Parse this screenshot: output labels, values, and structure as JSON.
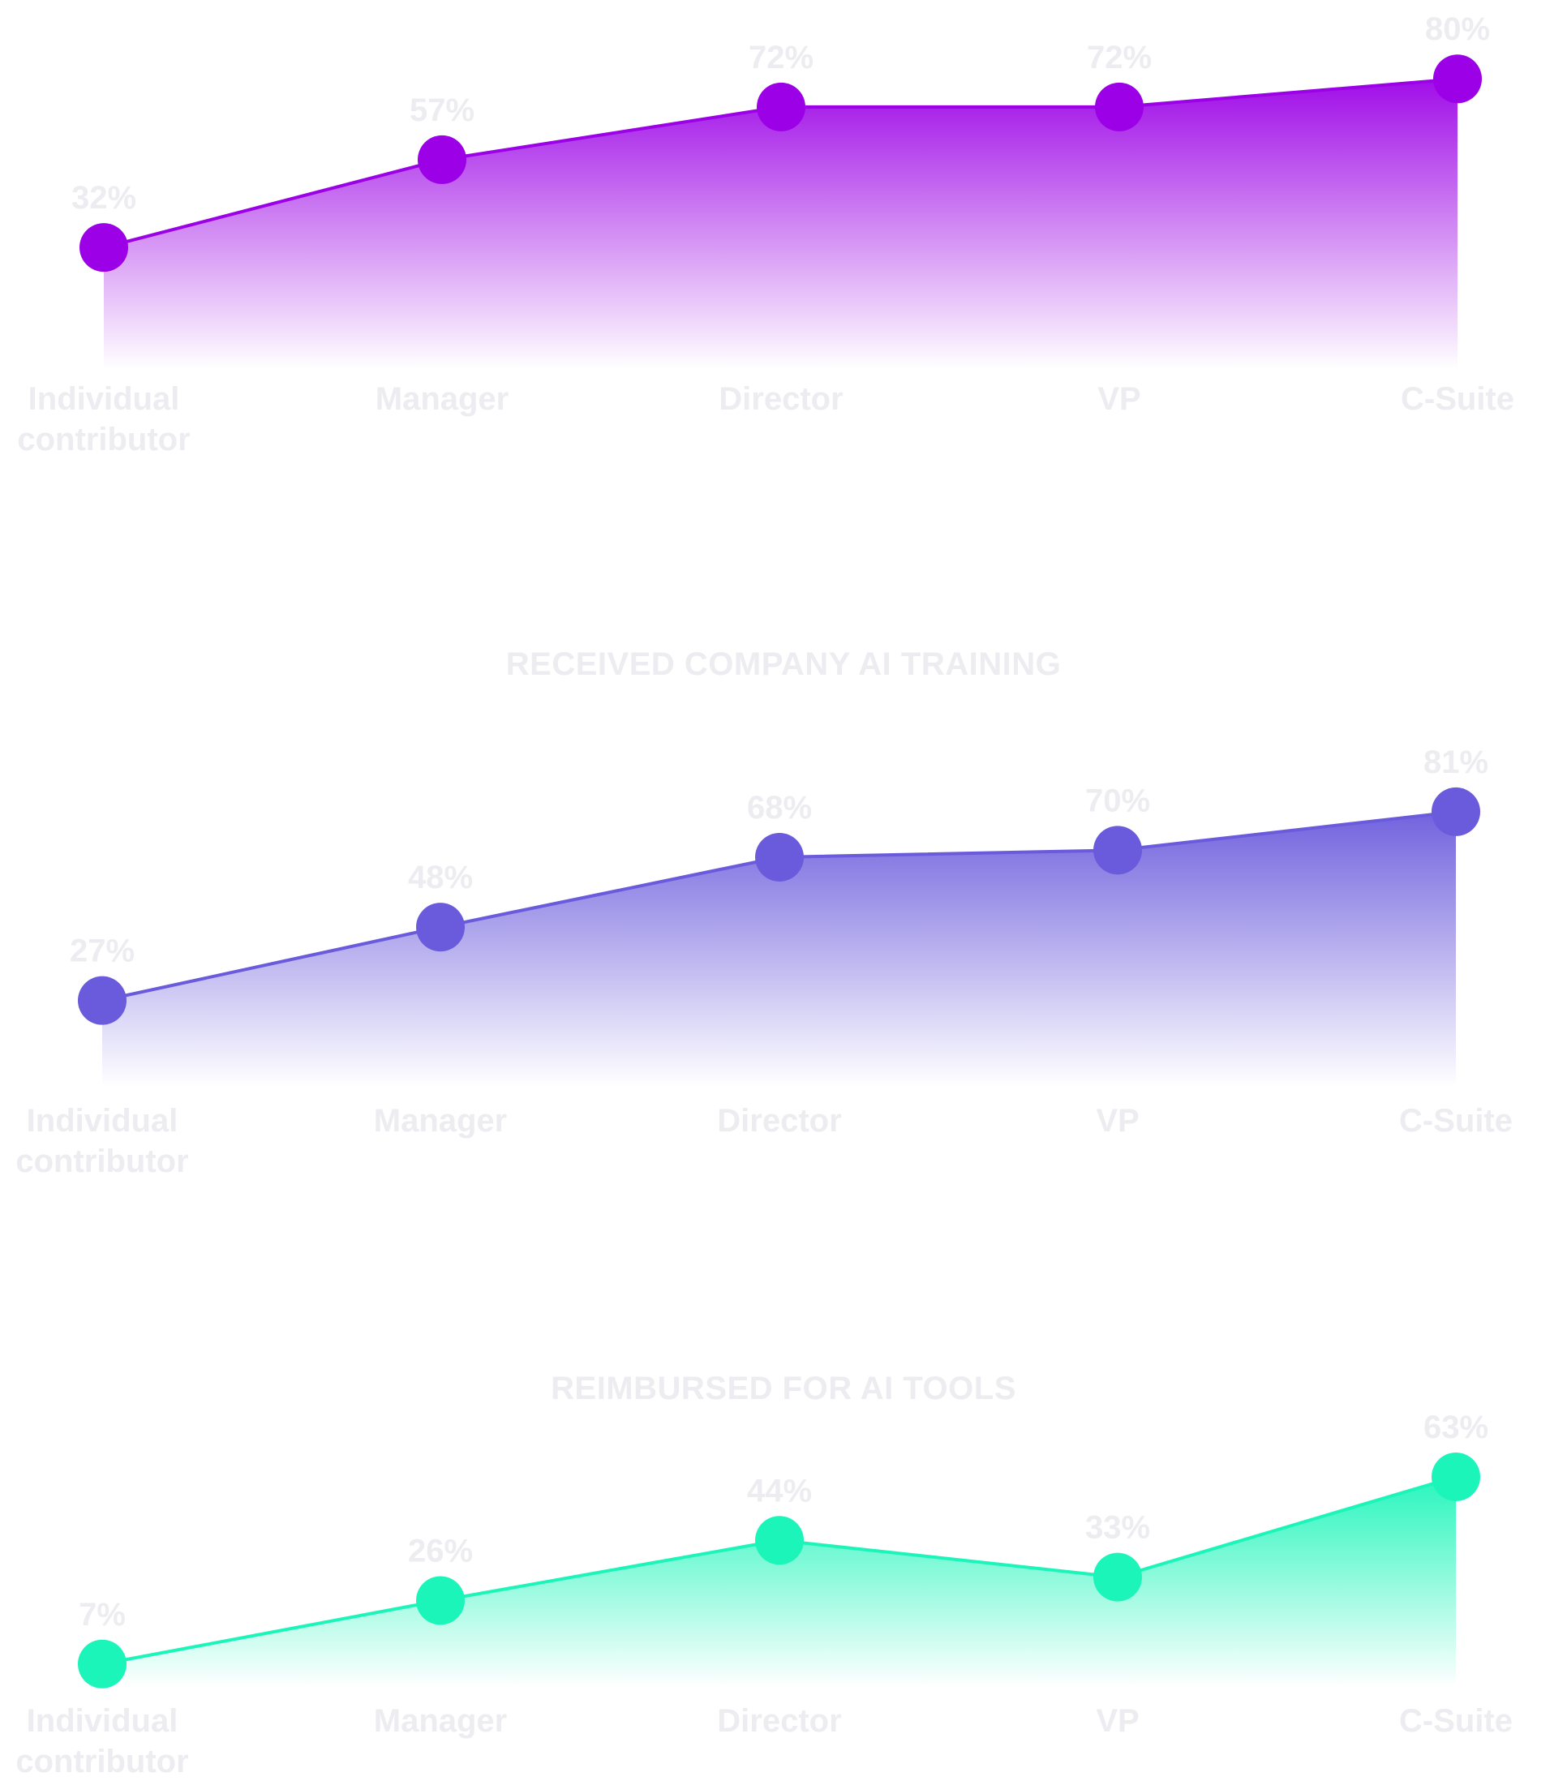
{
  "chart_data": [
    {
      "type": "area",
      "title": "",
      "categories": [
        "Individual contributor",
        "Manager",
        "Director",
        "VP",
        "C-Suite"
      ],
      "series": [
        {
          "values": [
            32,
            57,
            72,
            72,
            80
          ],
          "color": "#9b00e6"
        }
      ],
      "value_labels": [
        "32%",
        "57%",
        "72%",
        "72%",
        "80%"
      ],
      "ylim": [
        0,
        100
      ],
      "grid": false,
      "legend": "none"
    },
    {
      "type": "area",
      "title": "RECEIVED COMPANY AI TRAINING",
      "categories": [
        "Individual contributor",
        "Manager",
        "Director",
        "VP",
        "C-Suite"
      ],
      "series": [
        {
          "values": [
            27,
            48,
            68,
            70,
            81
          ],
          "color": "#6a5adc"
        }
      ],
      "value_labels": [
        "27%",
        "48%",
        "68%",
        "70%",
        "81%"
      ],
      "ylim": [
        0,
        100
      ],
      "grid": false,
      "legend": "none"
    },
    {
      "type": "area",
      "title": "REIMBURSED FOR AI TOOLS",
      "categories": [
        "Individual contributor",
        "Manager",
        "Director",
        "VP",
        "C-Suite"
      ],
      "series": [
        {
          "values": [
            7,
            26,
            44,
            33,
            63
          ],
          "color": "#1cf5b9"
        }
      ],
      "value_labels": [
        "7%",
        "26%",
        "44%",
        "33%",
        "63%"
      ],
      "ylim": [
        0,
        100
      ],
      "grid": false,
      "legend": "none"
    }
  ]
}
